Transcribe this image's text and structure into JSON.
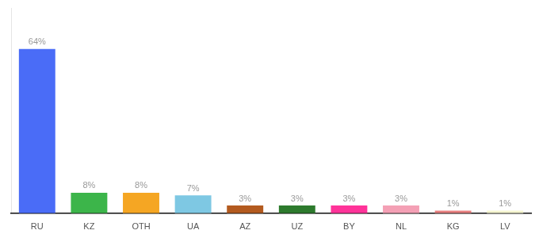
{
  "chart_data": {
    "type": "bar",
    "categories": [
      "RU",
      "KZ",
      "OTH",
      "UA",
      "AZ",
      "UZ",
      "BY",
      "NL",
      "KG",
      "LV"
    ],
    "values": [
      64,
      8,
      8,
      7,
      3,
      3,
      3,
      3,
      1,
      1
    ],
    "value_labels": [
      "64%",
      "8%",
      "8%",
      "7%",
      "3%",
      "3%",
      "3%",
      "3%",
      "1%",
      "1%"
    ],
    "colors": [
      "#4a6cf7",
      "#3cb54a",
      "#f5a623",
      "#7ec8e3",
      "#b35a1f",
      "#2d7a2d",
      "#ff3399",
      "#f4a0b5",
      "#e88080",
      "#f5f5d0"
    ],
    "ylim": [
      0,
      80
    ],
    "grid": false,
    "data_labels": true,
    "tick_labels": "x"
  }
}
